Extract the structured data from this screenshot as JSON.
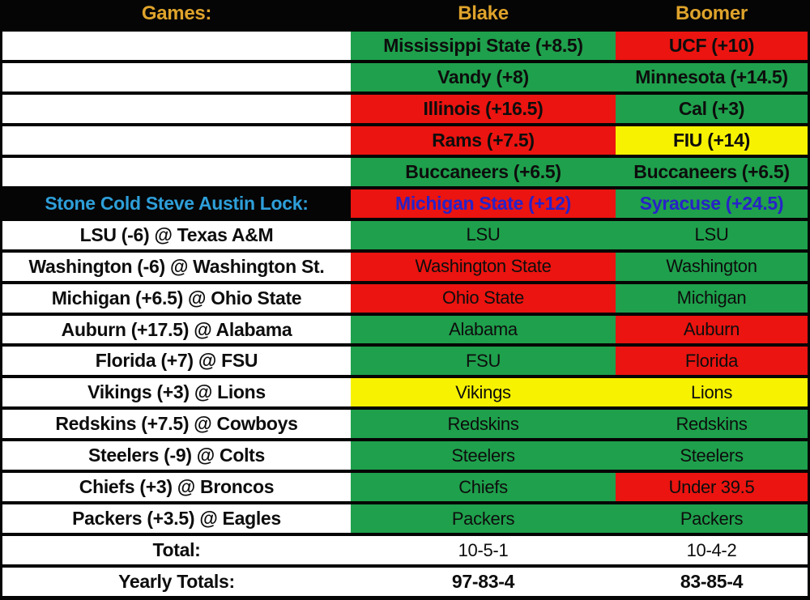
{
  "colors": {
    "green": "#1FA04C",
    "red": "#EB1410",
    "yellow": "#F7F200",
    "white": "#FFFFFF",
    "black": "#050505",
    "gold": "#DFA32B",
    "light_blue": "#2E9FD9",
    "blue": "#2822C8",
    "text_dark": "#0D0D0D"
  },
  "header": {
    "games_label": "Games:",
    "blake_label": "Blake",
    "boomer_label": "Boomer"
  },
  "rows": [
    {
      "game": "",
      "game_variant": "empty",
      "blake": {
        "text": "Mississippi State (+8.5)",
        "bg": "green",
        "fg": "text_dark",
        "bold": true
      },
      "boomer": {
        "text": "UCF (+10)",
        "bg": "red",
        "fg": "text_dark",
        "bold": true
      }
    },
    {
      "game": "",
      "game_variant": "empty",
      "blake": {
        "text": "Vandy (+8)",
        "bg": "green",
        "fg": "text_dark",
        "bold": true
      },
      "boomer": {
        "text": "Minnesota (+14.5)",
        "bg": "green",
        "fg": "text_dark",
        "bold": true
      }
    },
    {
      "game": "",
      "game_variant": "empty",
      "blake": {
        "text": "Illinois (+16.5)",
        "bg": "red",
        "fg": "text_dark",
        "bold": true
      },
      "boomer": {
        "text": "Cal (+3)",
        "bg": "green",
        "fg": "text_dark",
        "bold": true
      }
    },
    {
      "game": "",
      "game_variant": "empty",
      "blake": {
        "text": "Rams (+7.5)",
        "bg": "red",
        "fg": "text_dark",
        "bold": true
      },
      "boomer": {
        "text": "FIU (+14)",
        "bg": "yellow",
        "fg": "text_dark",
        "bold": true
      }
    },
    {
      "game": "",
      "game_variant": "empty",
      "blake": {
        "text": "Buccaneers (+6.5)",
        "bg": "green",
        "fg": "text_dark",
        "bold": true
      },
      "boomer": {
        "text": "Buccaneers (+6.5)",
        "bg": "green",
        "fg": "text_dark",
        "bold": true
      }
    },
    {
      "game": "Stone Cold Steve Austin Lock:",
      "game_variant": "lock",
      "blake": {
        "text": "Michigan State (+12)",
        "bg": "red",
        "fg": "blue",
        "bold": true
      },
      "boomer": {
        "text": "Syracuse (+24.5)",
        "bg": "green",
        "fg": "blue",
        "bold": true
      }
    },
    {
      "game": "LSU (-6) @ Texas A&M",
      "game_variant": "normal",
      "blake": {
        "text": "LSU",
        "bg": "green",
        "fg": "text_dark",
        "bold": false
      },
      "boomer": {
        "text": "LSU",
        "bg": "green",
        "fg": "text_dark",
        "bold": false
      }
    },
    {
      "game": "Washington (-6) @ Washington St.",
      "game_variant": "normal",
      "blake": {
        "text": "Washington State",
        "bg": "red",
        "fg": "text_dark",
        "bold": false
      },
      "boomer": {
        "text": "Washington",
        "bg": "green",
        "fg": "text_dark",
        "bold": false
      }
    },
    {
      "game": "Michigan (+6.5) @ Ohio State",
      "game_variant": "normal",
      "blake": {
        "text": "Ohio State",
        "bg": "red",
        "fg": "text_dark",
        "bold": false
      },
      "boomer": {
        "text": "Michigan",
        "bg": "green",
        "fg": "text_dark",
        "bold": false
      }
    },
    {
      "game": "Auburn (+17.5) @ Alabama",
      "game_variant": "normal",
      "blake": {
        "text": "Alabama",
        "bg": "green",
        "fg": "text_dark",
        "bold": false
      },
      "boomer": {
        "text": "Auburn",
        "bg": "red",
        "fg": "text_dark",
        "bold": false
      }
    },
    {
      "game": "Florida (+7) @ FSU",
      "game_variant": "normal",
      "blake": {
        "text": "FSU",
        "bg": "green",
        "fg": "text_dark",
        "bold": false
      },
      "boomer": {
        "text": "Florida",
        "bg": "red",
        "fg": "text_dark",
        "bold": false
      }
    },
    {
      "game": "Vikings (+3) @ Lions",
      "game_variant": "normal",
      "blake": {
        "text": "Vikings",
        "bg": "yellow",
        "fg": "text_dark",
        "bold": false
      },
      "boomer": {
        "text": "Lions",
        "bg": "yellow",
        "fg": "text_dark",
        "bold": false
      }
    },
    {
      "game": "Redskins (+7.5) @ Cowboys",
      "game_variant": "normal",
      "blake": {
        "text": "Redskins",
        "bg": "green",
        "fg": "text_dark",
        "bold": false
      },
      "boomer": {
        "text": "Redskins",
        "bg": "green",
        "fg": "text_dark",
        "bold": false
      }
    },
    {
      "game": "Steelers (-9) @ Colts",
      "game_variant": "normal",
      "blake": {
        "text": "Steelers",
        "bg": "green",
        "fg": "text_dark",
        "bold": false
      },
      "boomer": {
        "text": "Steelers",
        "bg": "green",
        "fg": "text_dark",
        "bold": false
      }
    },
    {
      "game": "Chiefs (+3) @ Broncos",
      "game_variant": "normal",
      "blake": {
        "text": "Chiefs",
        "bg": "green",
        "fg": "text_dark",
        "bold": false
      },
      "boomer": {
        "text": "Under 39.5",
        "bg": "red",
        "fg": "text_dark",
        "bold": false
      }
    },
    {
      "game": "Packers (+3.5) @ Eagles",
      "game_variant": "normal",
      "blake": {
        "text": "Packers",
        "bg": "green",
        "fg": "text_dark",
        "bold": false
      },
      "boomer": {
        "text": "Packers",
        "bg": "green",
        "fg": "text_dark",
        "bold": false
      }
    },
    {
      "game": "Total:",
      "game_variant": "normal",
      "blake": {
        "text": "10-5-1",
        "bg": "white",
        "fg": "text_dark",
        "bold": false
      },
      "boomer": {
        "text": "10-4-2",
        "bg": "white",
        "fg": "text_dark",
        "bold": false
      }
    },
    {
      "game": "Yearly Totals:",
      "game_variant": "normal",
      "blake": {
        "text": "97-83-4",
        "bg": "white",
        "fg": "text_dark",
        "bold": true
      },
      "boomer": {
        "text": "83-85-4",
        "bg": "white",
        "fg": "text_dark",
        "bold": true
      }
    }
  ]
}
